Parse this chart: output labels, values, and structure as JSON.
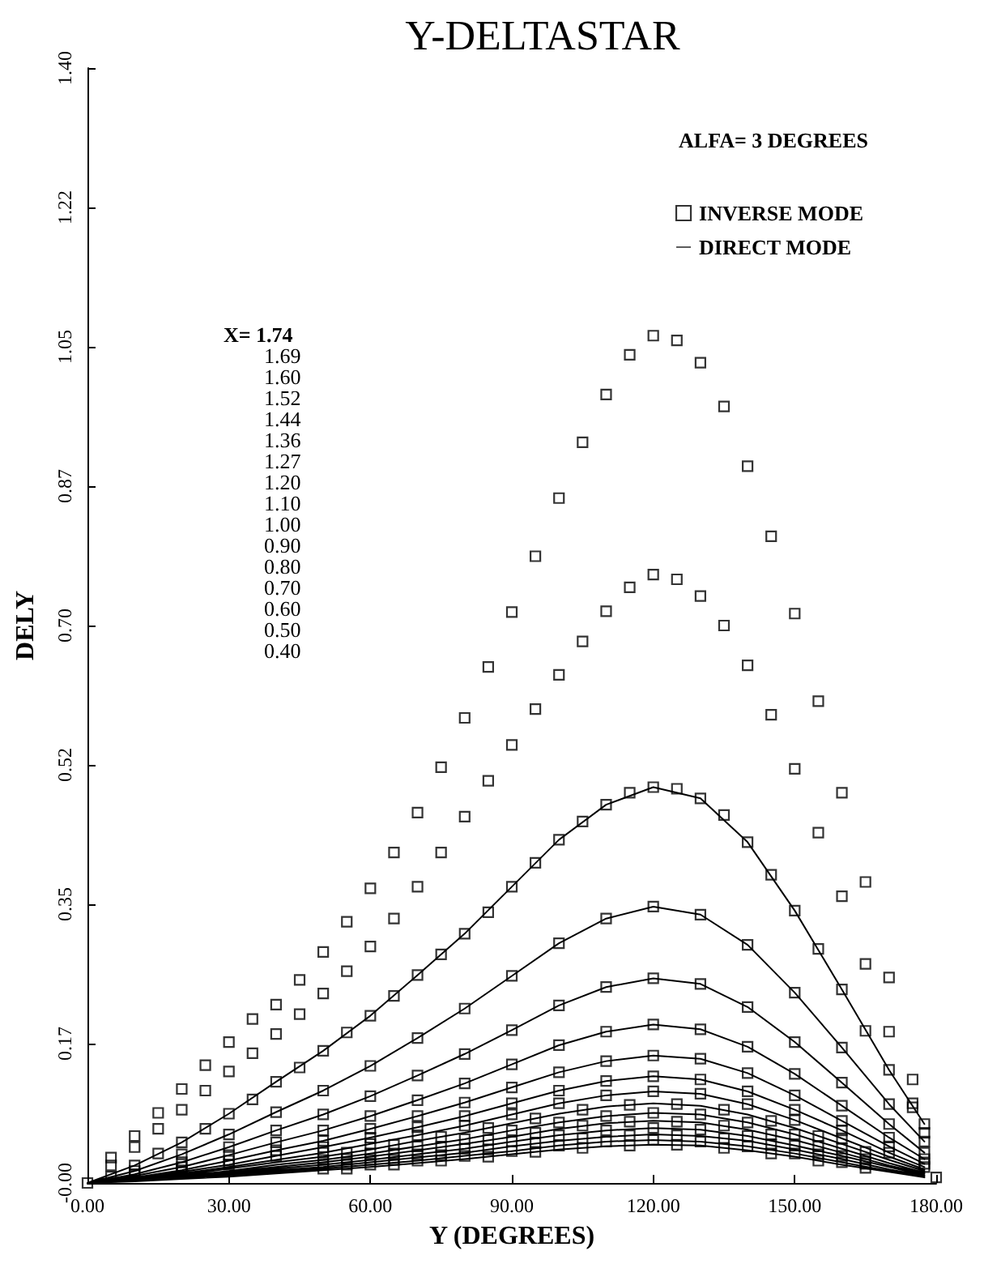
{
  "chart_data": {
    "type": "scatter",
    "title": "Y-DELTASTAR",
    "xlabel": "Y (DEGREES)",
    "ylabel": "DELY",
    "legend_title": "ALFA= 3 DEGREES",
    "legend": "top right",
    "grid": false,
    "marker": "square",
    "annotations": [
      "X= 1.74",
      "1.69",
      "1.60",
      "1.52",
      "1.44",
      "1.36",
      "1.27",
      "1.20",
      "1.10",
      "1.00",
      "0.90",
      "0.80",
      "0.70",
      "0.60",
      "0.50",
      "0.40"
    ],
    "xlim": [
      0,
      180
    ],
    "xticks": [
      {
        "value": 0,
        "label": "0.00"
      },
      {
        "value": 30,
        "label": "30.00"
      },
      {
        "value": 60,
        "label": "60.00"
      },
      {
        "value": 90,
        "label": "90.00"
      },
      {
        "value": 120,
        "label": "120.00"
      },
      {
        "value": 150,
        "label": "150.00"
      },
      {
        "value": 180,
        "label": "180.00"
      }
    ],
    "ylim": [
      0,
      1.4
    ],
    "yticks": [
      {
        "value": 0,
        "label": "-0.00"
      },
      {
        "value": 0.175,
        "label": "0.17"
      },
      {
        "value": 0.35,
        "label": "0.35"
      },
      {
        "value": 0.525,
        "label": "0.52"
      },
      {
        "value": 0.7,
        "label": "0.70"
      },
      {
        "value": 0.875,
        "label": "0.87"
      },
      {
        "value": 1.05,
        "label": "1.05"
      },
      {
        "value": 1.225,
        "label": "1.22"
      },
      {
        "value": 1.4,
        "label": "1.40"
      }
    ],
    "series": [
      {
        "name": "INVERSE MODE",
        "color": "#000000",
        "x": [
          0,
          5,
          10,
          15,
          20,
          25,
          30,
          35,
          40,
          45,
          50,
          55,
          60,
          65,
          70,
          75,
          80,
          85,
          90,
          95,
          100,
          105,
          110,
          115,
          120,
          125,
          130,
          135,
          140,
          145,
          150,
          155,
          160,
          165,
          170,
          175,
          180,
          5,
          10,
          15,
          20,
          25,
          30,
          35,
          40,
          45,
          50,
          55,
          60,
          65,
          70,
          75,
          80,
          85,
          90,
          95,
          100,
          105,
          110,
          115,
          120,
          125,
          130,
          135,
          140,
          145,
          150,
          155,
          160,
          165,
          170,
          175,
          177.5,
          5,
          10,
          15,
          20,
          25,
          30,
          35,
          40,
          45,
          50,
          55,
          60,
          65,
          70,
          75,
          80,
          85,
          90,
          95,
          100,
          105,
          110,
          115,
          120,
          125,
          130,
          135,
          140,
          145,
          150,
          155,
          160,
          165,
          170,
          175,
          177.5,
          10,
          20,
          30,
          40,
          50,
          60,
          70,
          80,
          90,
          100,
          110,
          120,
          130,
          140,
          150,
          160,
          170,
          177.5,
          10,
          20,
          30,
          40,
          50,
          60,
          70,
          80,
          90,
          100,
          110,
          120,
          130,
          140,
          150,
          160,
          170,
          177.5,
          20,
          30,
          40,
          50,
          60,
          70,
          80,
          90,
          100,
          110,
          120,
          130,
          140,
          150,
          160,
          170,
          177.5,
          20,
          30,
          40,
          50,
          60,
          70,
          80,
          90,
          100,
          110,
          120,
          130,
          140,
          150,
          160,
          170,
          177.5,
          20,
          30,
          40,
          50,
          60,
          70,
          80,
          90,
          100,
          110,
          120,
          130,
          140,
          150,
          160,
          170,
          177.5,
          50,
          60,
          70,
          80,
          90,
          100,
          110,
          120,
          130,
          140,
          150,
          160,
          55,
          65,
          75,
          85,
          95,
          105,
          115,
          125,
          135,
          145,
          155,
          165,
          50,
          60,
          70,
          80,
          90,
          100,
          110,
          120,
          130,
          140,
          150,
          160,
          55,
          65,
          75,
          85,
          95,
          105,
          115,
          125,
          135,
          145,
          155,
          165,
          50,
          60,
          70,
          80,
          90,
          100,
          110,
          120,
          130,
          140,
          150,
          160,
          55,
          65,
          75,
          85,
          95,
          105,
          115,
          125,
          135,
          145,
          155,
          165,
          50,
          60,
          70,
          80,
          90,
          100,
          110,
          120,
          130,
          140,
          150,
          160,
          55,
          65,
          75,
          85,
          95,
          105,
          115,
          125,
          135,
          145,
          155,
          165
        ],
        "values": [
          0,
          0.032,
          0.059,
          0.088,
          0.118,
          0.148,
          0.177,
          0.206,
          0.224,
          0.255,
          0.29,
          0.328,
          0.37,
          0.415,
          0.465,
          0.522,
          0.584,
          0.648,
          0.717,
          0.787,
          0.86,
          0.93,
          0.99,
          1.04,
          1.064,
          1.058,
          1.03,
          0.975,
          0.9,
          0.812,
          0.715,
          0.605,
          0.49,
          0.378,
          0.258,
          0.13,
          0.007,
          0.022,
          0.045,
          0.068,
          0.092,
          0.116,
          0.14,
          0.163,
          0.187,
          0.212,
          0.238,
          0.266,
          0.297,
          0.332,
          0.372,
          0.415,
          0.46,
          0.505,
          0.55,
          0.595,
          0.638,
          0.68,
          0.718,
          0.748,
          0.764,
          0.758,
          0.737,
          0.7,
          0.65,
          0.588,
          0.52,
          0.44,
          0.36,
          0.275,
          0.19,
          0.1,
          0.063,
          0.008,
          0.022,
          0.037,
          0.051,
          0.068,
          0.087,
          0.105,
          0.127,
          0.145,
          0.166,
          0.189,
          0.21,
          0.235,
          0.261,
          0.287,
          0.313,
          0.34,
          0.372,
          0.402,
          0.431,
          0.454,
          0.475,
          0.49,
          0.497,
          0.495,
          0.483,
          0.462,
          0.428,
          0.387,
          0.342,
          0.294,
          0.243,
          0.191,
          0.142,
          0.095,
          0.074,
          0.015,
          0.036,
          0.061,
          0.089,
          0.116,
          0.147,
          0.182,
          0.219,
          0.26,
          0.301,
          0.332,
          0.347,
          0.337,
          0.299,
          0.239,
          0.17,
          0.099,
          0.052,
          0.011,
          0.026,
          0.045,
          0.066,
          0.086,
          0.109,
          0.135,
          0.162,
          0.192,
          0.223,
          0.246,
          0.257,
          0.25,
          0.221,
          0.177,
          0.126,
          0.074,
          0.038,
          0.02,
          0.035,
          0.051,
          0.066,
          0.084,
          0.104,
          0.125,
          0.149,
          0.173,
          0.19,
          0.199,
          0.193,
          0.171,
          0.137,
          0.097,
          0.057,
          0.03,
          0.016,
          0.028,
          0.041,
          0.053,
          0.068,
          0.084,
          0.101,
          0.12,
          0.139,
          0.153,
          0.16,
          0.156,
          0.138,
          0.11,
          0.078,
          0.046,
          0.024,
          0.014,
          0.023,
          0.034,
          0.045,
          0.057,
          0.07,
          0.084,
          0.1,
          0.116,
          0.128,
          0.134,
          0.13,
          0.115,
          0.092,
          0.066,
          0.038,
          0.02,
          0.038,
          0.049,
          0.06,
          0.072,
          0.086,
          0.1,
          0.11,
          0.115,
          0.112,
          0.099,
          0.079,
          0.056,
          0.038,
          0.048,
          0.058,
          0.069,
          0.081,
          0.092,
          0.098,
          0.099,
          0.092,
          0.078,
          0.059,
          0.039,
          0.029,
          0.037,
          0.046,
          0.055,
          0.066,
          0.076,
          0.084,
          0.088,
          0.086,
          0.076,
          0.061,
          0.043,
          0.03,
          0.037,
          0.045,
          0.054,
          0.063,
          0.072,
          0.077,
          0.077,
          0.072,
          0.061,
          0.046,
          0.03,
          0.023,
          0.029,
          0.036,
          0.043,
          0.052,
          0.06,
          0.066,
          0.069,
          0.067,
          0.059,
          0.047,
          0.034,
          0.023,
          0.029,
          0.035,
          0.042,
          0.05,
          0.056,
          0.06,
          0.06,
          0.056,
          0.048,
          0.036,
          0.024,
          0.018,
          0.023,
          0.028,
          0.034,
          0.04,
          0.047,
          0.052,
          0.054,
          0.052,
          0.046,
          0.037,
          0.026,
          0.018,
          0.023,
          0.028,
          0.033,
          0.039,
          0.044,
          0.047,
          0.048,
          0.044,
          0.037,
          0.028,
          0.019
        ]
      },
      {
        "name": "DIRECT MODE",
        "type": "line",
        "marker": "none",
        "line_style": "solid",
        "color": "#000000",
        "x": [
          0,
          10,
          20,
          30,
          40,
          50,
          60,
          70,
          80,
          90,
          100,
          110,
          120,
          130,
          140,
          150,
          160,
          170,
          177.5,
          null,
          0,
          10,
          20,
          30,
          40,
          50,
          60,
          70,
          80,
          90,
          100,
          110,
          120,
          130,
          140,
          150,
          160,
          170,
          177.5,
          null,
          0,
          10,
          20,
          30,
          40,
          50,
          60,
          70,
          80,
          90,
          100,
          110,
          120,
          130,
          140,
          150,
          160,
          170,
          177.5,
          null,
          0,
          10,
          20,
          30,
          40,
          50,
          60,
          70,
          80,
          90,
          100,
          110,
          120,
          130,
          140,
          150,
          160,
          170,
          177.5,
          null,
          0,
          10,
          20,
          30,
          40,
          50,
          60,
          70,
          80,
          90,
          100,
          110,
          120,
          130,
          140,
          150,
          160,
          170,
          177.5,
          null,
          0,
          10,
          20,
          30,
          40,
          50,
          60,
          70,
          80,
          90,
          100,
          110,
          120,
          130,
          140,
          150,
          160,
          170,
          177.5,
          null,
          0,
          10,
          20,
          30,
          40,
          50,
          60,
          70,
          80,
          90,
          100,
          110,
          120,
          130,
          140,
          150,
          160,
          170,
          177.5,
          null,
          0,
          10,
          20,
          30,
          40,
          50,
          60,
          70,
          80,
          90,
          100,
          110,
          120,
          130,
          140,
          150,
          160,
          170,
          177.5,
          null,
          0,
          10,
          20,
          30,
          40,
          50,
          60,
          70,
          80,
          90,
          100,
          110,
          120,
          130,
          140,
          150,
          160,
          170,
          177.5,
          null,
          0,
          10,
          20,
          30,
          40,
          50,
          60,
          70,
          80,
          90,
          100,
          110,
          120,
          130,
          140,
          150,
          160,
          170,
          177.5,
          null,
          0,
          10,
          20,
          30,
          40,
          50,
          60,
          70,
          80,
          90,
          100,
          110,
          120,
          130,
          140,
          150,
          160,
          170,
          177.5,
          null,
          0,
          10,
          20,
          30,
          40,
          50,
          60,
          70,
          80,
          90,
          100,
          110,
          120,
          130,
          140,
          150,
          160,
          170,
          177.5,
          null,
          0,
          10,
          20,
          30,
          40,
          50,
          60,
          70,
          80,
          90,
          100,
          110,
          120,
          130,
          140,
          150,
          160,
          170,
          177.5,
          null,
          0,
          10,
          20,
          30,
          40,
          50,
          60,
          70,
          80,
          90,
          100,
          110,
          120,
          130,
          140,
          150,
          160,
          170,
          177.5
        ],
        "values": [
          0,
          0.022,
          0.051,
          0.087,
          0.127,
          0.166,
          0.21,
          0.261,
          0.313,
          0.372,
          0.431,
          0.475,
          0.497,
          0.483,
          0.428,
          0.342,
          0.243,
          0.142,
          0.074,
          null,
          0,
          0.015,
          0.036,
          0.061,
          0.089,
          0.116,
          0.147,
          0.182,
          0.219,
          0.26,
          0.301,
          0.332,
          0.347,
          0.337,
          0.299,
          0.239,
          0.17,
          0.099,
          0.052,
          null,
          0,
          0.011,
          0.026,
          0.045,
          0.066,
          0.086,
          0.109,
          0.135,
          0.162,
          0.192,
          0.223,
          0.246,
          0.257,
          0.25,
          0.221,
          0.177,
          0.126,
          0.074,
          0.038,
          null,
          0,
          0.009,
          0.02,
          0.035,
          0.051,
          0.066,
          0.084,
          0.104,
          0.125,
          0.149,
          0.173,
          0.19,
          0.199,
          0.193,
          0.171,
          0.137,
          0.097,
          0.057,
          0.03,
          null,
          0,
          0.007,
          0.016,
          0.028,
          0.041,
          0.053,
          0.068,
          0.084,
          0.101,
          0.12,
          0.139,
          0.153,
          0.16,
          0.156,
          0.138,
          0.11,
          0.078,
          0.046,
          0.024,
          null,
          0,
          0.006,
          0.014,
          0.023,
          0.034,
          0.045,
          0.057,
          0.07,
          0.084,
          0.1,
          0.116,
          0.128,
          0.134,
          0.13,
          0.115,
          0.092,
          0.066,
          0.038,
          0.02,
          null,
          0,
          0.005,
          0.012,
          0.02,
          0.029,
          0.038,
          0.049,
          0.06,
          0.072,
          0.086,
          0.1,
          0.11,
          0.115,
          0.112,
          0.099,
          0.079,
          0.056,
          0.033,
          0.017,
          null,
          0,
          0.004,
          0.01,
          0.018,
          0.026,
          0.033,
          0.042,
          0.053,
          0.063,
          0.075,
          0.087,
          0.096,
          0.1,
          0.097,
          0.086,
          0.069,
          0.049,
          0.029,
          0.015,
          null,
          0,
          0.004,
          0.009,
          0.015,
          0.023,
          0.029,
          0.037,
          0.046,
          0.055,
          0.066,
          0.076,
          0.084,
          0.088,
          0.086,
          0.076,
          0.061,
          0.043,
          0.025,
          0.013,
          null,
          0,
          0.003,
          0.008,
          0.014,
          0.02,
          0.026,
          0.033,
          0.041,
          0.049,
          0.058,
          0.068,
          0.075,
          0.078,
          0.076,
          0.067,
          0.054,
          0.038,
          0.022,
          0.012,
          null,
          0,
          0.003,
          0.007,
          0.012,
          0.018,
          0.023,
          0.029,
          0.036,
          0.043,
          0.052,
          0.06,
          0.066,
          0.069,
          0.067,
          0.059,
          0.047,
          0.034,
          0.02,
          0.01,
          null,
          0,
          0.003,
          0.006,
          0.011,
          0.016,
          0.02,
          0.026,
          0.032,
          0.038,
          0.046,
          0.053,
          0.058,
          0.061,
          0.059,
          0.053,
          0.042,
          0.03,
          0.017,
          0.009,
          null,
          0,
          0.002,
          0.006,
          0.009,
          0.014,
          0.018,
          0.023,
          0.028,
          0.034,
          0.04,
          0.047,
          0.052,
          0.054,
          0.052,
          0.046,
          0.037,
          0.026,
          0.015,
          0.008,
          null,
          0,
          0.002,
          0.005,
          0.008,
          0.012,
          0.016,
          0.02,
          0.025,
          0.03,
          0.036,
          0.042,
          0.046,
          0.048,
          0.047,
          0.041,
          0.033,
          0.023,
          0.014,
          0.007
        ]
      }
    ]
  }
}
